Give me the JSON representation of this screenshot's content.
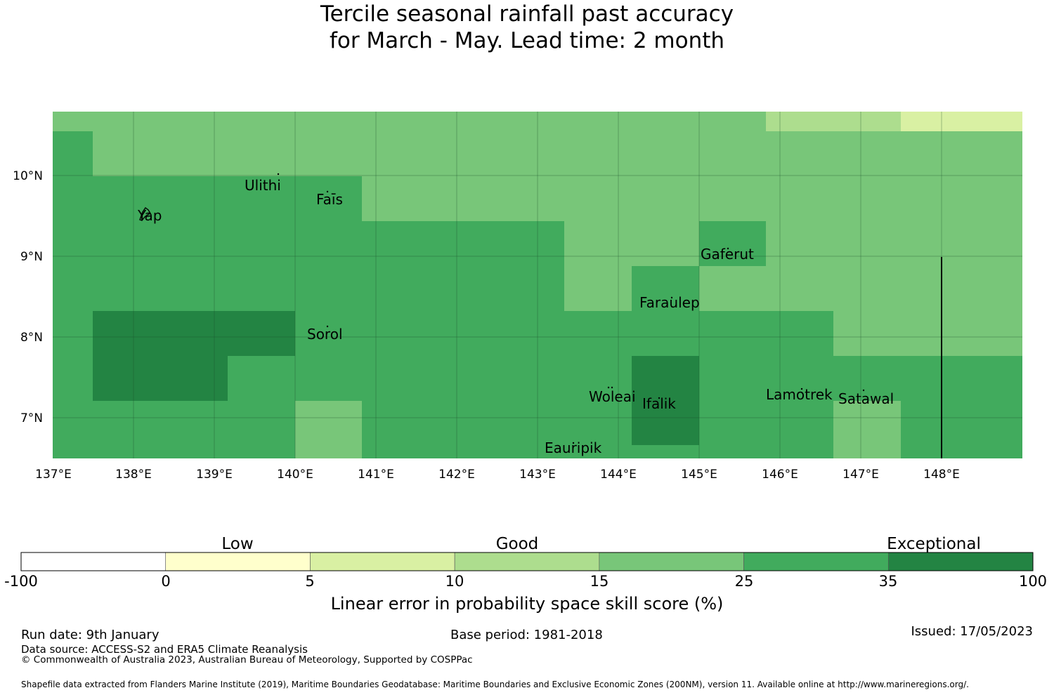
{
  "title": {
    "line1": "Tercile seasonal rainfall past accuracy",
    "line2": "for March - May. Lead time: 2 month"
  },
  "map": {
    "lat_labels": [
      "10°N",
      "9°N",
      "8°N",
      "7°N"
    ],
    "lon_labels": [
      "137°E",
      "138°E",
      "139°E",
      "140°E",
      "141°E",
      "142°E",
      "143°E",
      "144°E",
      "145°E",
      "146°E",
      "147°E",
      "148°E"
    ],
    "places": [
      "Ulithi",
      "Yap",
      "Faīs",
      "Gaferut",
      "Faraulep",
      "Sorol",
      "Woleai",
      "Ifalik",
      "Lamotrek",
      "Satawal",
      "Eauripik"
    ]
  },
  "legend": {
    "category_labels": [
      "Low",
      "Good",
      "Exceptional"
    ],
    "tick_labels": [
      "-100",
      "0",
      "5",
      "10",
      "15",
      "25",
      "35",
      "100"
    ],
    "colors": [
      "#ffffff",
      "#ffffcc",
      "#d9f0a3",
      "#addd8e",
      "#78c679",
      "#41ab5d",
      "#238443"
    ],
    "axis_label": "Linear error in probability space skill score (%)"
  },
  "footer": {
    "run_date": "Run date: 9th January",
    "base_period": "Base period: 1981-2018",
    "issued": "Issued: 17/05/2023",
    "data_source": "Data source: ACCESS-S2 and ERA5 Climate Reanalysis",
    "copyright": "© Commonwealth of Australia 2023, Australian Bureau of Meteorology, Supported by COSPPac",
    "shapefile": "Shapefile data extracted from Flanders Marine Institute (2019), Maritime Boundaries Geodatabase: Maritime Boundaries and Exclusive Economic Zones (200NM), version 11. Available online at http://www.marineregions.org/."
  }
}
